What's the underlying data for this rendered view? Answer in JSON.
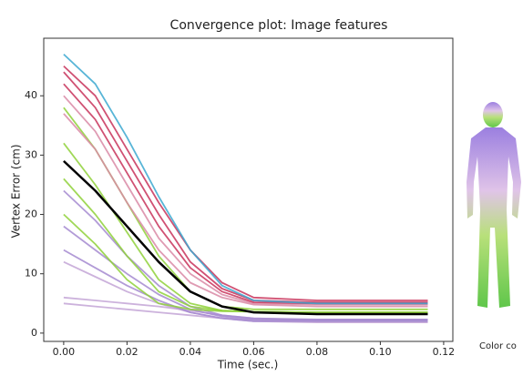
{
  "chart_data": {
    "type": "line",
    "title": "Convergence plot: Image features",
    "x_label": "Time (sec.)",
    "y_label": "Vertex Error (cm)",
    "side_caption": "Color co",
    "x": [
      0,
      0.01,
      0.02,
      0.03,
      0.04,
      0.05,
      0.06,
      0.08,
      0.1,
      0.115
    ],
    "xlim": [
      -0.0063,
      0.1229
    ],
    "ylim": [
      -1.4,
      49.7
    ],
    "xticks": [
      {
        "value": 0,
        "label": "0.00"
      },
      {
        "value": 0.02,
        "label": "0.02"
      },
      {
        "value": 0.04,
        "label": "0.04"
      },
      {
        "value": 0.06,
        "label": "0.06"
      },
      {
        "value": 0.08,
        "label": "0.08"
      },
      {
        "value": 0.1,
        "label": "0.10"
      },
      {
        "value": 0.12,
        "label": "0.12"
      }
    ],
    "yticks": [
      0,
      10,
      20,
      30,
      40
    ],
    "series": [
      {
        "color": "#c3a4d6",
        "values": [
          5,
          4.5,
          4,
          3.5,
          3,
          2.5,
          2.2,
          2,
          2,
          2
        ]
      },
      {
        "color": "#c3a4d6",
        "values": [
          6,
          5.5,
          5,
          4.5,
          3.8,
          3,
          2.5,
          2.2,
          2.2,
          2.2
        ]
      },
      {
        "color": "#c3a4d6",
        "values": [
          12,
          9.5,
          7,
          5,
          3.5,
          2.5,
          2,
          1.8,
          1.8,
          1.8
        ]
      },
      {
        "color": "#a48ad0",
        "values": [
          14,
          11,
          8,
          5.5,
          3.5,
          2.5,
          2,
          2,
          2,
          2
        ]
      },
      {
        "color": "#a48ad0",
        "values": [
          18,
          14,
          10,
          6.5,
          4,
          2.8,
          2.3,
          2.2,
          2.2,
          2.2
        ]
      },
      {
        "color": "#a48ad0",
        "values": [
          24,
          19,
          13,
          8,
          4.5,
          3,
          2.5,
          2.3,
          2.3,
          2.3
        ]
      },
      {
        "color": "#8fd13a",
        "values": [
          20,
          15,
          9,
          5,
          4,
          3.7,
          3.6,
          3.5,
          3.5,
          3.5
        ]
      },
      {
        "color": "#8fd13a",
        "values": [
          26,
          20,
          13,
          7,
          4.5,
          3.8,
          3.6,
          3.5,
          3.5,
          3.5
        ]
      },
      {
        "color": "#8fd13a",
        "values": [
          32,
          25,
          17,
          9,
          5,
          3.8,
          3.6,
          3.5,
          3.5,
          3.5
        ]
      },
      {
        "color": "#8fd13a",
        "values": [
          38,
          31,
          22,
          13,
          7,
          4.5,
          4,
          4,
          4,
          4
        ]
      },
      {
        "color": "#d98aa6",
        "values": [
          37,
          31,
          22,
          14,
          8.5,
          6,
          4.8,
          4.5,
          4.5,
          4.5
        ]
      },
      {
        "color": "#d98aa6",
        "values": [
          40,
          34,
          25,
          16,
          10,
          6.5,
          5,
          4.8,
          4.8,
          4.8
        ]
      },
      {
        "color": "#c8325a",
        "values": [
          42,
          36,
          27,
          18,
          11,
          7,
          5.2,
          5,
          5,
          5
        ]
      },
      {
        "color": "#c8325a",
        "values": [
          44,
          38,
          29,
          20,
          12,
          7.5,
          5.5,
          5.2,
          5.2,
          5.2
        ]
      },
      {
        "color": "#c8325a",
        "values": [
          45,
          40,
          31,
          22,
          14,
          8.5,
          6,
          5.5,
          5.5,
          5.5
        ]
      },
      {
        "color": "#3ba8d0",
        "values": [
          47,
          42,
          33,
          23,
          14,
          8,
          5.5,
          5,
          5,
          5
        ]
      },
      {
        "color": "#000000",
        "values": [
          29,
          24,
          18,
          12,
          7,
          4.5,
          3.5,
          3.2,
          3.2,
          3.2
        ]
      }
    ]
  }
}
